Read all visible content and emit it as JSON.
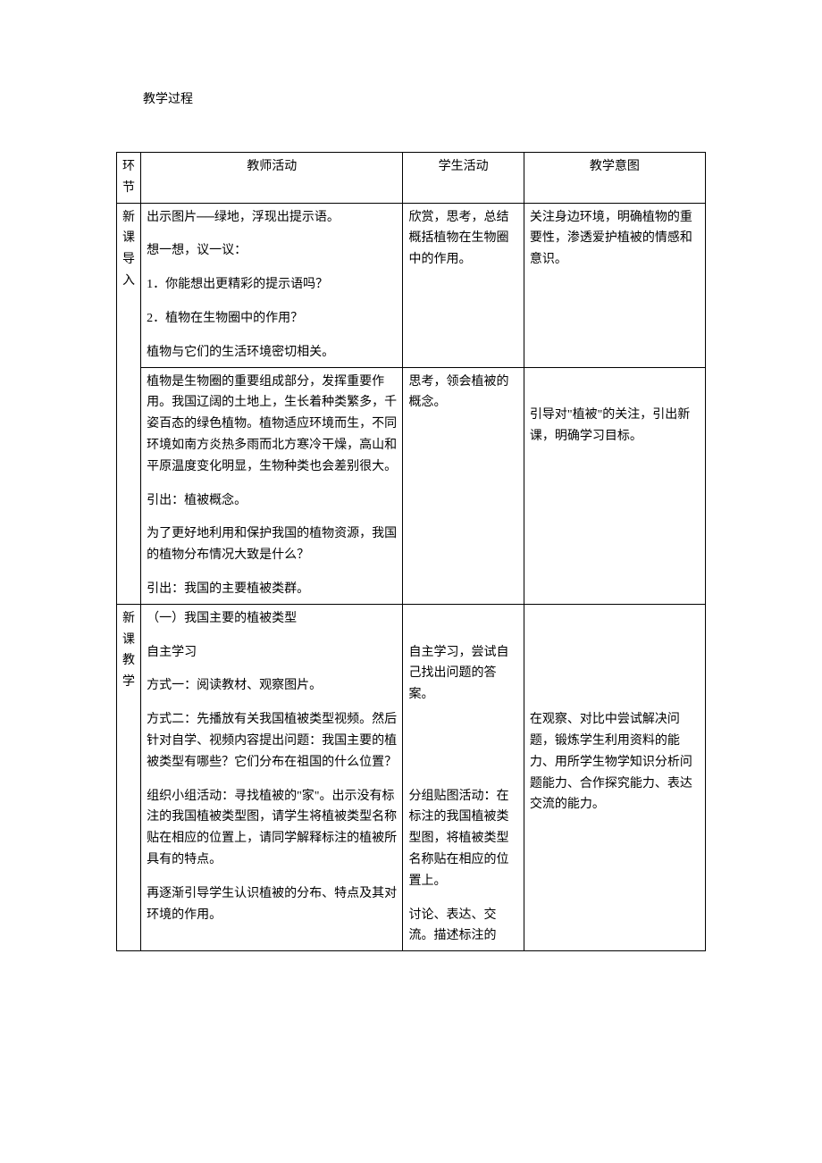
{
  "section_title": "教学过程",
  "table": {
    "columns": {
      "phase": "环节",
      "teacher": "教师活动",
      "student": "学生活动",
      "intent": "教学意图"
    },
    "col_widths": {
      "phase": "24px",
      "teacher": "260px",
      "student": "120px",
      "intent": "180px"
    },
    "border_color": "#000000",
    "font_size": 14,
    "line_height": 1.7,
    "rows": [
      {
        "phase_label": "新课导入",
        "phase_rowspan": 2,
        "subrows": [
          {
            "teacher": [
              "出示图片──绿地，浮现出提示语。",
              "想一想，议一议：",
              "1．你能想出更精彩的提示语吗？",
              "2．植物在生物圈中的作用？",
              "植物与它们的生活环境密切相关。"
            ],
            "student": [
              "欣赏，思考，总结概括植物在生物圈中的作用。"
            ],
            "intent": [
              "关注身边环境，明确植物的重要性，渗透爱护植被的情感和意识。"
            ]
          },
          {
            "teacher": [
              "植物是生物圈的重要组成部分，发挥重要作用。我国辽阔的土地上，生长着种类繁多，千姿百态的绿色植物。植物适应环境而生，不同环境如南方炎热多雨而北方寒冷干燥，高山和平原温度变化明显，生物种类也会差别很大。",
              "引出：植被概念。",
              "为了更好地利用和保护我国的植物资源，我国的植物分布情况大致是什么？",
              "引出：我国的主要植被类群。"
            ],
            "student": [
              "思考，领会植被的概念。"
            ],
            "intent": [
              "",
              "引导对\"植被\"的关注，引出新课，明确学习目标。"
            ]
          }
        ]
      },
      {
        "phase_label": "新课教学",
        "phase_rowspan": 1,
        "subrows": [
          {
            "teacher": [
              "（一）我国主要的植被类型",
              "自主学习",
              "方式一：阅读教材、观察图片。",
              "方式二：先播放有关我国植被类型视频。然后针对自学、视频内容提出问题：我国主要的植被类型有哪些？它们分布在祖国的什么位置？",
              "组织小组活动：寻找植被的\"家\"。出示没有标注的我国植被类型图，请学生将植被类型名称贴在相应的位置上，请同学解释标注的植被所具有的特点。",
              "再逐渐引导学生认识植被的分布、特点及其对环境的作用。"
            ],
            "student": [
              "",
              "自主学习，尝试自己找出问题的答案。",
              "",
              "",
              "分组贴图活动：在标注的我国植被类型图，将植被类型名称贴在相应的位置上。",
              "讨论、表达、交流。描述标注的"
            ],
            "intent": [
              "",
              "",
              "",
              "在观察、对比中尝试解决问题，锻炼学生利用资料的能力、用所学生物学知识分析问题能力、合作探究能力、表达交流的能力。"
            ]
          }
        ]
      }
    ]
  }
}
